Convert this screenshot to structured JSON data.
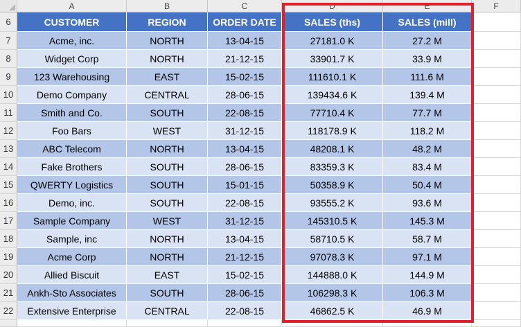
{
  "columns": [
    "A",
    "B",
    "C",
    "D",
    "E",
    "F"
  ],
  "header_row": {
    "row_number": "6",
    "labels": [
      "CUSTOMER",
      "REGION",
      "ORDER DATE",
      "SALES (ths)",
      "SALES (mill)"
    ]
  },
  "rows": [
    {
      "row": "7",
      "customer": "Acme, inc.",
      "region": "NORTH",
      "date": "13-04-15",
      "sales_ths": "27181.0 K",
      "sales_mill": "27.2 M"
    },
    {
      "row": "8",
      "customer": "Widget Corp",
      "region": "NORTH",
      "date": "21-12-15",
      "sales_ths": "33901.7 K",
      "sales_mill": "33.9 M"
    },
    {
      "row": "9",
      "customer": "123 Warehousing",
      "region": "EAST",
      "date": "15-02-15",
      "sales_ths": "111610.1 K",
      "sales_mill": "111.6 M"
    },
    {
      "row": "10",
      "customer": "Demo Company",
      "region": "CENTRAL",
      "date": "28-06-15",
      "sales_ths": "139434.6 K",
      "sales_mill": "139.4 M"
    },
    {
      "row": "11",
      "customer": "Smith and Co.",
      "region": "SOUTH",
      "date": "22-08-15",
      "sales_ths": "77710.4 K",
      "sales_mill": "77.7 M"
    },
    {
      "row": "12",
      "customer": "Foo Bars",
      "region": "WEST",
      "date": "31-12-15",
      "sales_ths": "118178.9 K",
      "sales_mill": "118.2 M"
    },
    {
      "row": "13",
      "customer": "ABC Telecom",
      "region": "NORTH",
      "date": "13-04-15",
      "sales_ths": "48208.1 K",
      "sales_mill": "48.2 M"
    },
    {
      "row": "14",
      "customer": "Fake Brothers",
      "region": "SOUTH",
      "date": "28-06-15",
      "sales_ths": "83359.3 K",
      "sales_mill": "83.4 M"
    },
    {
      "row": "15",
      "customer": "QWERTY Logistics",
      "region": "SOUTH",
      "date": "15-01-15",
      "sales_ths": "50358.9 K",
      "sales_mill": "50.4 M"
    },
    {
      "row": "16",
      "customer": "Demo, inc.",
      "region": "SOUTH",
      "date": "22-08-15",
      "sales_ths": "93555.2 K",
      "sales_mill": "93.6 M"
    },
    {
      "row": "17",
      "customer": "Sample Company",
      "region": "WEST",
      "date": "31-12-15",
      "sales_ths": "145310.5 K",
      "sales_mill": "145.3 M"
    },
    {
      "row": "18",
      "customer": "Sample, inc",
      "region": "NORTH",
      "date": "13-04-15",
      "sales_ths": "58710.5 K",
      "sales_mill": "58.7 M"
    },
    {
      "row": "19",
      "customer": "Acme Corp",
      "region": "NORTH",
      "date": "21-12-15",
      "sales_ths": "97078.3 K",
      "sales_mill": "97.1 M"
    },
    {
      "row": "20",
      "customer": "Allied Biscuit",
      "region": "EAST",
      "date": "15-02-15",
      "sales_ths": "144888.0 K",
      "sales_mill": "144.9 M"
    },
    {
      "row": "21",
      "customer": "Ankh-Sto Associates",
      "region": "SOUTH",
      "date": "28-06-15",
      "sales_ths": "106298.3 K",
      "sales_mill": "106.3 M"
    },
    {
      "row": "22",
      "customer": "Extensive Enterprise",
      "region": "CENTRAL",
      "date": "22-08-15",
      "sales_ths": "46862.5 K",
      "sales_mill": "46.9 M"
    }
  ],
  "colors": {
    "header_fill": "#4472c4",
    "band_dark": "#b4c6e7",
    "band_light": "#dae3f3",
    "highlight_border": "#e0202a"
  }
}
